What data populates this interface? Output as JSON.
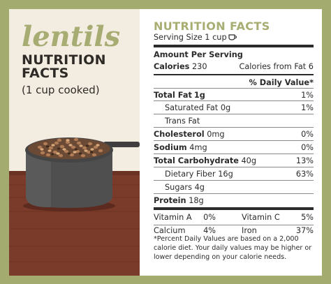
{
  "left": {
    "brand": "lentils",
    "title_line1": "NUTRITION",
    "title_line2": "FACTS",
    "subtitle": "(1 cup cooked)"
  },
  "label": {
    "title": "NUTRITION FACTS",
    "serving": "Serving Size 1 cup",
    "amount_per_serving": "Amount Per Serving",
    "calories_label": "Calories",
    "calories_value": "230",
    "calories_fat": "Calories from Fat 6",
    "dv_header": "% Daily Value*",
    "rows": [
      {
        "label": "Total Fat",
        "amount": "1g",
        "dv": "1%"
      },
      {
        "label": "Saturated Fat",
        "amount": "0g",
        "dv": "1%"
      },
      {
        "label": "Trans Fat",
        "amount": "",
        "dv": ""
      },
      {
        "label": "Cholesterol",
        "amount": "0mg",
        "dv": "0%"
      },
      {
        "label": "Sodium",
        "amount": "4mg",
        "dv": "0%"
      },
      {
        "label": "Total Carbohydrate",
        "amount": "40g",
        "dv": "13%"
      },
      {
        "label": "Dietary Fiber",
        "amount": "16g",
        "dv": "63%"
      },
      {
        "label": "Sugars",
        "amount": "4g",
        "dv": ""
      },
      {
        "label": "Protein",
        "amount": "18g",
        "dv": ""
      }
    ],
    "vitamins": [
      {
        "label": "Vitamin A",
        "dv": "0%"
      },
      {
        "label": "Vitamin C",
        "dv": "5%"
      },
      {
        "label": "Calcium",
        "dv": "4%"
      },
      {
        "label": "Iron",
        "dv": "37%"
      }
    ],
    "footnote": "*Percent Daily Values are based on a 2,000 calorie diet. Your daily values may be higher or lower depending on your calorie needs."
  },
  "colors": {
    "frame": "#a3ab6e",
    "accent": "#a8ad72",
    "pot": "#4f4f4f",
    "table": "#7b3b2a"
  },
  "icons": {
    "cup": "cup-icon"
  }
}
